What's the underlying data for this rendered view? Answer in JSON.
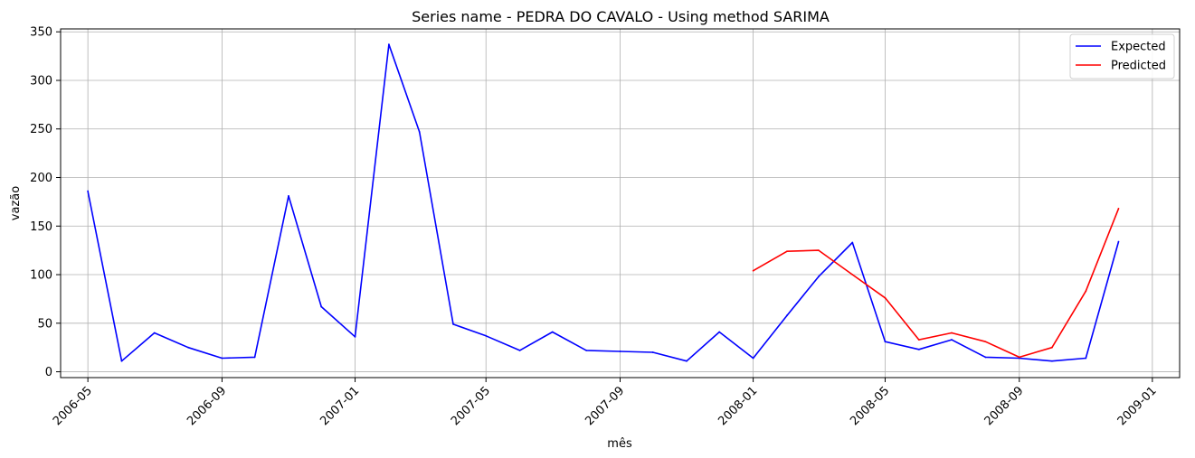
{
  "chart_data": {
    "type": "line",
    "title": "Series name - PEDRA DO CAVALO - Using method SARIMA",
    "xlabel": "mês",
    "ylabel": "vazão",
    "xlim": [
      "2006-04-06",
      "2009-01-26"
    ],
    "ylim": [
      -6,
      353
    ],
    "xticks": [
      "2006-05-01",
      "2006-09-01",
      "2007-01-01",
      "2007-05-01",
      "2007-09-01",
      "2008-01-01",
      "2008-05-01",
      "2008-09-01",
      "2009-01-01"
    ],
    "xtick_labels": [
      "2006-05",
      "2006-09",
      "2007-01",
      "2007-05",
      "2007-09",
      "2008-01",
      "2008-05",
      "2008-09",
      "2009-01"
    ],
    "yticks": [
      0,
      50,
      100,
      150,
      200,
      250,
      300,
      350
    ],
    "ytick_labels": [
      "0",
      "50",
      "100",
      "150",
      "200",
      "250",
      "300",
      "350"
    ],
    "grid": true,
    "legend_position": "top-right",
    "series": [
      {
        "name": "Expected",
        "color": "#0000ff",
        "x": [
          "2006-05-01",
          "2006-06-01",
          "2006-07-01",
          "2006-08-01",
          "2006-09-01",
          "2006-10-01",
          "2006-11-01",
          "2006-12-01",
          "2007-01-01",
          "2007-02-01",
          "2007-03-01",
          "2007-04-01",
          "2007-05-01",
          "2007-06-01",
          "2007-07-01",
          "2007-08-01",
          "2007-09-01",
          "2007-10-01",
          "2007-11-01",
          "2007-12-01",
          "2008-01-01",
          "2008-02-01",
          "2008-03-01",
          "2008-04-01",
          "2008-05-01",
          "2008-06-01",
          "2008-07-01",
          "2008-08-01",
          "2008-09-01",
          "2008-10-01",
          "2008-11-01",
          "2008-12-01"
        ],
        "values": [
          186,
          11,
          40,
          25,
          14,
          15,
          181,
          67,
          36,
          337,
          247,
          49,
          37,
          22,
          41,
          22,
          21,
          20,
          11,
          41,
          14,
          58,
          98,
          133,
          31,
          23,
          33,
          15,
          14,
          11,
          14,
          134
        ]
      },
      {
        "name": "Predicted",
        "color": "#ff0000",
        "x": [
          "2008-01-01",
          "2008-02-01",
          "2008-03-01",
          "2008-04-01",
          "2008-05-01",
          "2008-06-01",
          "2008-07-01",
          "2008-08-01",
          "2008-09-01",
          "2008-10-01",
          "2008-11-01",
          "2008-12-01"
        ],
        "values": [
          104,
          124,
          125,
          100,
          76,
          33,
          40,
          31,
          15,
          25,
          83,
          168
        ]
      }
    ]
  }
}
